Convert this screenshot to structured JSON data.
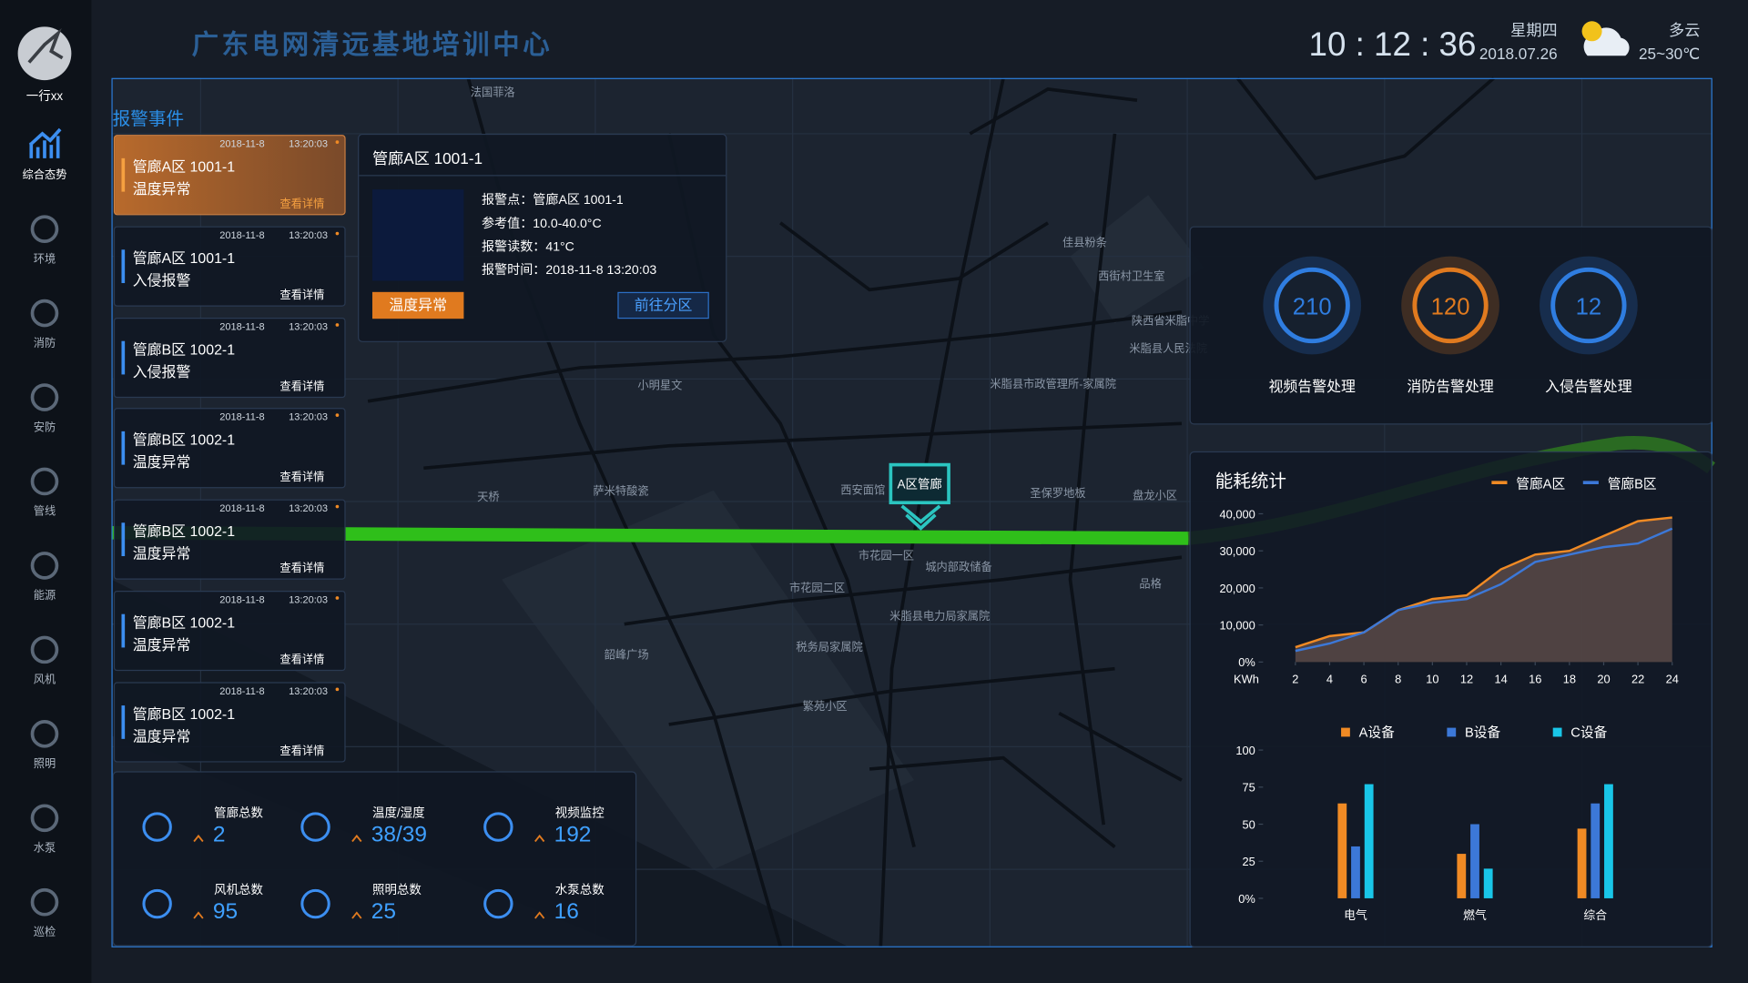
{
  "header": {
    "user": "一行xx",
    "title": "广东电网清远基地培训中心",
    "time": "10 : 12 : 36",
    "weekday": "星期四",
    "date": "2018.07.26",
    "weather": "多云",
    "temperature": "25~30℃"
  },
  "sidebar": {
    "items": [
      "综合态势",
      "环境",
      "消防",
      "安防",
      "管线",
      "能源",
      "风机",
      "照明",
      "水泵",
      "巡检"
    ]
  },
  "alarms": {
    "title": "报警事件",
    "items": [
      {
        "date": "2018-11-8",
        "time": "13:20:03",
        "location": "管廊A区 1001-1",
        "type": "温度异常",
        "link": "查看详情"
      },
      {
        "date": "2018-11-8",
        "time": "13:20:03",
        "location": "管廊A区 1001-1",
        "type": "入侵报警",
        "link": "查看详情"
      },
      {
        "date": "2018-11-8",
        "time": "13:20:03",
        "location": "管廊B区 1002-1",
        "type": "入侵报警",
        "link": "查看详情"
      },
      {
        "date": "2018-11-8",
        "time": "13:20:03",
        "location": "管廊B区 1002-1",
        "type": "温度异常",
        "link": "查看详情"
      },
      {
        "date": "2018-11-8",
        "time": "13:20:03",
        "location": "管廊B区 1002-1",
        "type": "温度异常",
        "link": "查看详情"
      },
      {
        "date": "2018-11-8",
        "time": "13:20:03",
        "location": "管廊B区 1002-1",
        "type": "温度异常",
        "link": "查看详情"
      },
      {
        "date": "2018-11-8",
        "time": "13:20:03",
        "location": "管廊B区 1002-1",
        "type": "温度异常",
        "link": "查看详情"
      }
    ]
  },
  "popup": {
    "title": "管廊A区 1001-1",
    "fields": [
      "报警点：管廊A区 1001-1",
      "参考值：10.0-40.0°C",
      "报警读数：41°C",
      "报警时间：2018-11-8 13:20:03"
    ],
    "status": "温度异常",
    "button": "前往分区"
  },
  "map": {
    "marker": "A区管廊",
    "labels": [
      "法国菲洛",
      "佳县粉条",
      "西街村卫生室",
      "陕西省米脂中学",
      "米脂县人民法院",
      "小明星文",
      "天桥",
      "萨米特酸瓷",
      "西安面馆",
      "市花园一区",
      "城内部政储备",
      "市花园二区",
      "米脂县电力局家属院",
      "税务局家属院",
      "韶峰广场",
      "繁苑小区",
      "圣保罗地板",
      "盘龙小区",
      "品格",
      "米脂县市政管理所-家属院"
    ]
  },
  "stats": [
    {
      "label": "管廊总数",
      "value": 2
    },
    {
      "label": "温度/湿度",
      "value": "38/39"
    },
    {
      "label": "视频监控",
      "value": 192
    },
    {
      "label": "风机总数",
      "value": 95
    },
    {
      "label": "照明总数",
      "value": 25
    },
    {
      "label": "水泵总数",
      "value": 16
    }
  ],
  "gauges": [
    {
      "value": 210,
      "label": "视频告警处理",
      "color": "#2f7de0"
    },
    {
      "value": 120,
      "label": "消防告警处理",
      "color": "#e07a1f"
    },
    {
      "value": 12,
      "label": "入侵告警处理",
      "color": "#2f7de0"
    }
  ],
  "chart_data": [
    {
      "type": "line",
      "title": "能耗统计",
      "ylabel": "KWh",
      "x": [
        2,
        4,
        6,
        8,
        10,
        12,
        14,
        16,
        18,
        20,
        22,
        24
      ],
      "xlim": [
        2,
        24
      ],
      "xticks": [
        2,
        4,
        6,
        8,
        10,
        12,
        14,
        16,
        18,
        20,
        22,
        24
      ],
      "ylim": [
        0,
        40000
      ],
      "yticks": [
        {
          "value": 0,
          "label": "0%"
        },
        {
          "value": 10000,
          "label": "10,000"
        },
        {
          "value": 20000,
          "label": "20,000"
        },
        {
          "value": 30000,
          "label": "30,000"
        },
        {
          "value": 40000,
          "label": "40,000"
        }
      ],
      "series": [
        {
          "name": "管廊A区",
          "color": "#f08a24",
          "values": [
            4000,
            7000,
            8000,
            14000,
            17000,
            18000,
            25000,
            29000,
            30000,
            34000,
            38000,
            39000
          ]
        },
        {
          "name": "管廊B区",
          "color": "#3c78d8",
          "values": [
            3000,
            5000,
            8000,
            14000,
            16000,
            17000,
            21000,
            27000,
            29000,
            31000,
            32000,
            36000
          ]
        }
      ]
    },
    {
      "type": "bar",
      "categories": [
        "电气",
        "燃气",
        "综合"
      ],
      "ylim": [
        0,
        100
      ],
      "yticks": [
        {
          "value": 0,
          "label": "0%"
        },
        25,
        50,
        75,
        100
      ],
      "series": [
        {
          "name": "A设备",
          "color": "#f08a24",
          "values": [
            64,
            30,
            47
          ]
        },
        {
          "name": "B设备",
          "color": "#3c78d8",
          "values": [
            35,
            50,
            64
          ]
        },
        {
          "name": "C设备",
          "color": "#19c6e8",
          "values": [
            77,
            20,
            77
          ]
        }
      ]
    }
  ]
}
